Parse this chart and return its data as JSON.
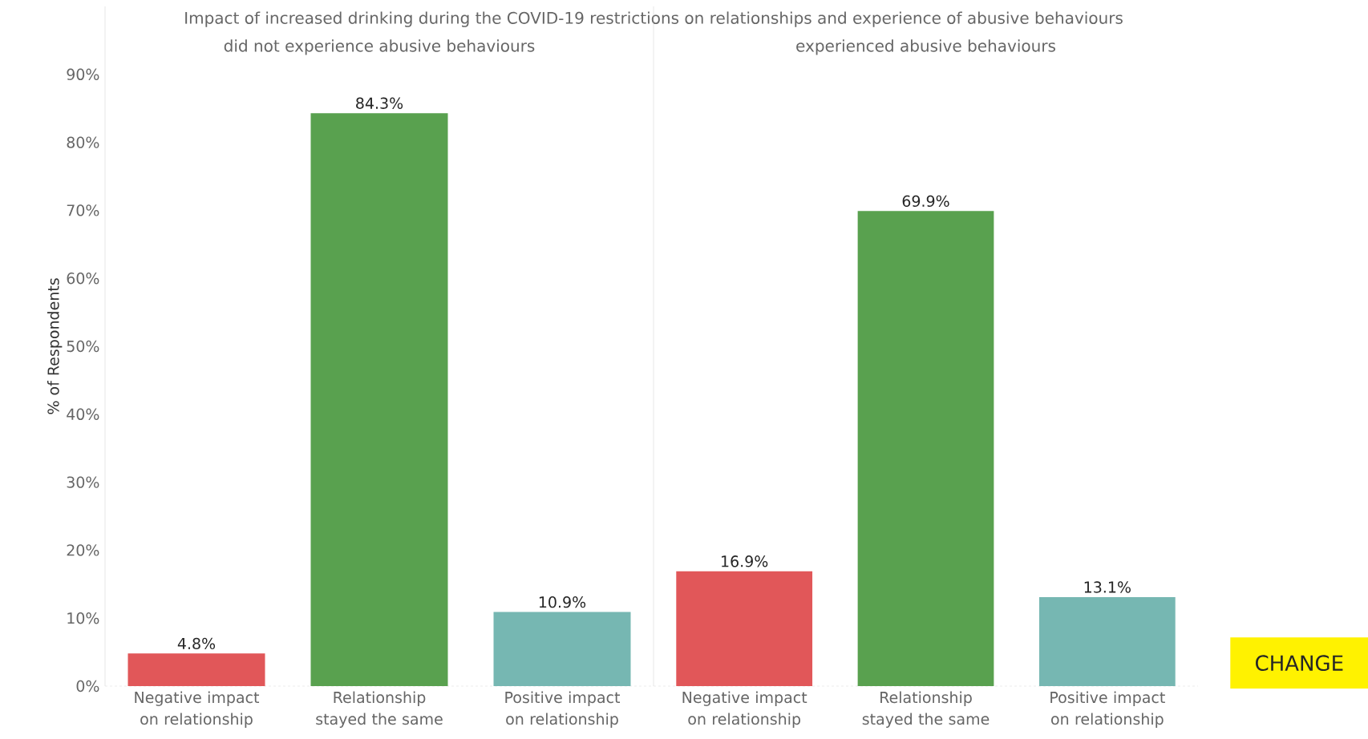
{
  "chart_data": [
    {
      "type": "bar",
      "title": "Impact of increased drinking during the COVID-19 restrictions on relationships and experience of abusive behaviours",
      "subtitle": "did not experience abusive behaviours",
      "ylabel": "% of Respondents",
      "categories": [
        "Negative impact on relationship",
        "Relationship stayed the same",
        "Positive impact on relationship"
      ],
      "values": [
        4.8,
        84.3,
        10.9
      ],
      "colors": [
        "#e15759",
        "#59a14f",
        "#76b7b2"
      ],
      "value_labels": [
        "4.8%",
        "84.3%",
        "10.9%"
      ],
      "ylim": [
        0,
        100
      ],
      "yticks": [
        {
          "value": 0,
          "label": "0%"
        },
        {
          "value": 10,
          "label": "10%"
        },
        {
          "value": 20,
          "label": "20%"
        },
        {
          "value": 30,
          "label": "30%"
        },
        {
          "value": 40,
          "label": "40%"
        },
        {
          "value": 50,
          "label": "50%"
        },
        {
          "value": 60,
          "label": "60%"
        },
        {
          "value": 70,
          "label": "70%"
        },
        {
          "value": 80,
          "label": "80%"
        },
        {
          "value": 90,
          "label": "90%"
        }
      ]
    },
    {
      "type": "bar",
      "subtitle": "experienced abusive behaviours",
      "categories": [
        "Negative impact on relationship",
        "Relationship stayed the same",
        "Positive impact on relationship"
      ],
      "values": [
        16.9,
        69.9,
        13.1
      ],
      "colors": [
        "#e15759",
        "#59a14f",
        "#76b7b2"
      ],
      "value_labels": [
        "16.9%",
        "69.9%",
        "13.1%"
      ],
      "ylim": [
        0,
        100
      ],
      "annotations": [
        "CHANGE"
      ]
    }
  ]
}
